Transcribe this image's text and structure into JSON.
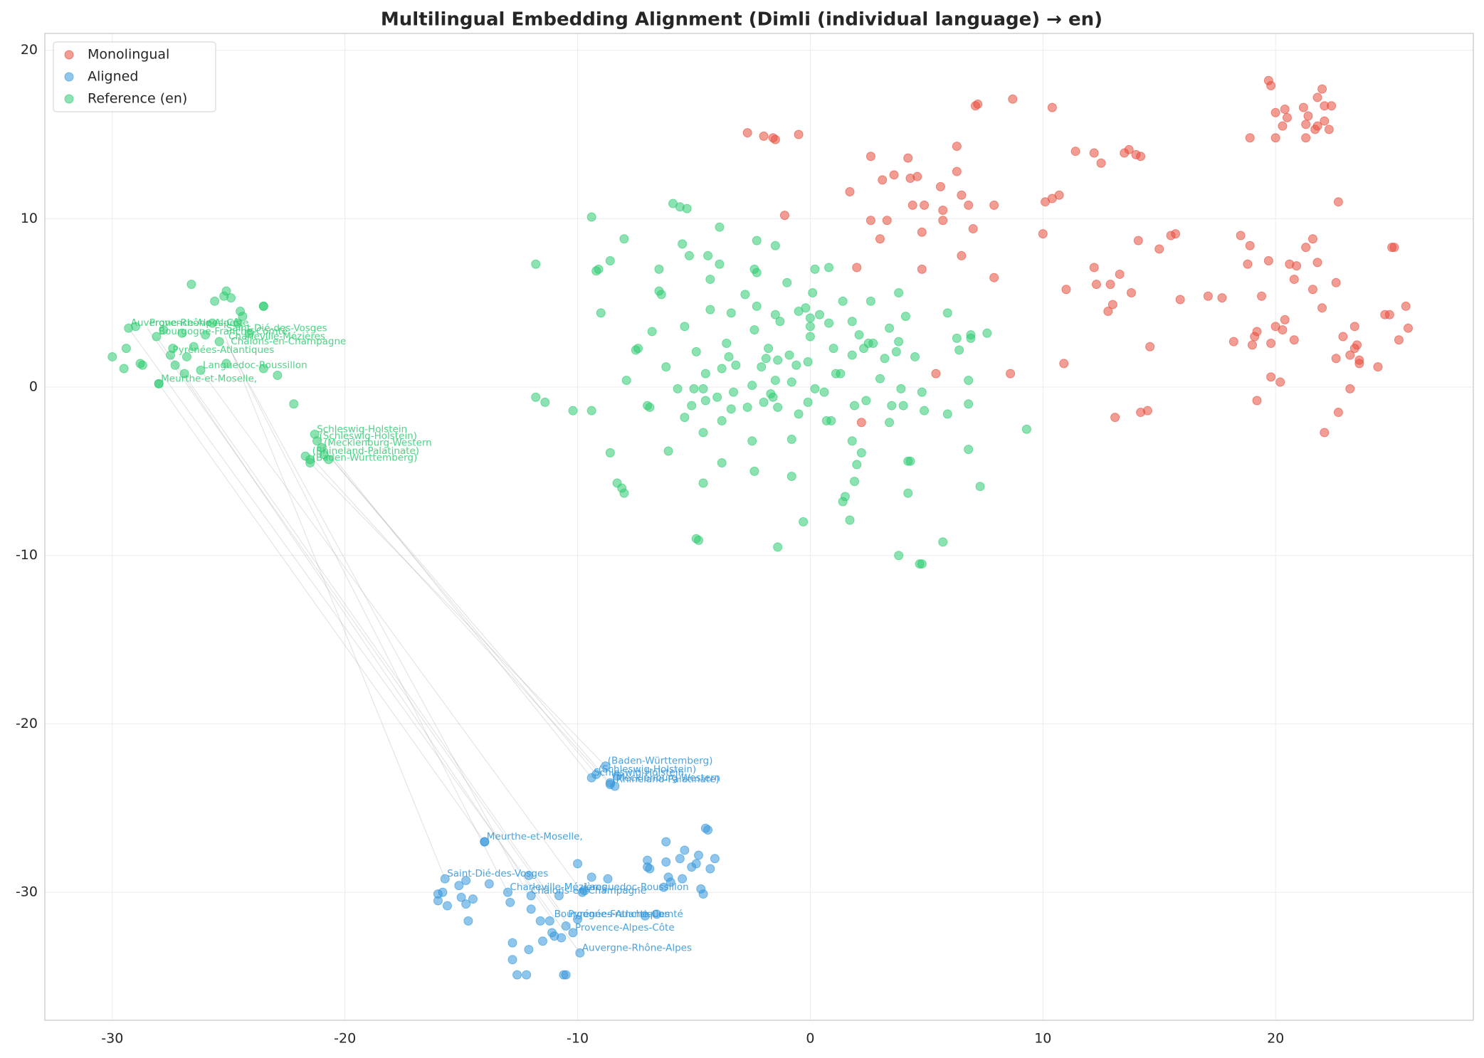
{
  "chart_data": {
    "type": "scatter",
    "title": "Multilingual Embedding Alignment (Dimli (individual language) → en)",
    "xlim": [
      -32.9,
      28.5
    ],
    "ylim": [
      -37.6,
      21.0
    ],
    "xticks": [
      -30,
      -20,
      -10,
      0,
      10,
      20
    ],
    "yticks": [
      -30,
      -20,
      -10,
      0,
      10,
      20
    ],
    "grid": true,
    "legend": "upper left",
    "series": [
      {
        "name": "Monolingual",
        "color": "#e74c3c",
        "x": [
          -2.7,
          -2.0,
          -1.6,
          -1.5,
          -0.5,
          -1.1,
          1.7,
          2.0,
          2.6,
          2.6,
          3.0,
          3.1,
          3.3,
          3.6,
          4.2,
          4.3,
          4.4,
          4.6,
          4.8,
          4.8,
          4.9,
          5.6,
          5.7,
          5.7,
          6.3,
          6.3,
          6.5,
          6.5,
          6.8,
          7.0,
          7.1,
          7.2,
          7.9,
          7.9,
          8.7,
          8.6,
          10.0,
          10.1,
          10.4,
          10.4,
          10.7,
          10.9,
          11.0,
          11.4,
          12.2,
          12.2,
          12.3,
          12.5,
          12.8,
          12.9,
          13.0,
          13.1,
          13.3,
          13.5,
          13.7,
          13.8,
          14.0,
          14.1,
          14.2,
          14.2,
          14.5,
          14.6,
          15.0,
          15.5,
          15.7,
          15.9,
          17.1,
          17.7,
          18.2,
          18.5,
          18.8,
          18.9,
          18.9,
          19.0,
          19.1,
          19.2,
          19.2,
          19.4,
          19.7,
          19.7,
          19.8,
          19.8,
          19.8,
          20.0,
          20.0,
          20.0,
          20.2,
          20.3,
          20.3,
          20.4,
          20.4,
          20.5,
          20.6,
          20.8,
          20.8,
          20.9,
          21.2,
          21.3,
          21.3,
          21.3,
          21.4,
          21.6,
          21.6,
          21.7,
          21.8,
          21.8,
          21.8,
          22.0,
          22.0,
          22.1,
          22.1,
          22.1,
          22.3,
          22.4,
          22.6,
          22.6,
          22.7,
          22.7,
          22.9,
          23.2,
          23.2,
          23.4,
          23.4,
          23.5,
          23.6,
          23.6,
          24.4,
          24.7,
          24.9,
          25.0,
          25.1,
          25.3,
          25.6,
          25.7,
          2.2,
          5.4
        ],
        "values": [
          15.1,
          14.9,
          14.8,
          14.7,
          15.0,
          10.2,
          11.6,
          7.1,
          13.7,
          9.9,
          8.8,
          12.3,
          9.9,
          12.6,
          13.6,
          12.4,
          10.8,
          12.5,
          7.0,
          9.2,
          10.8,
          11.9,
          10.5,
          9.9,
          14.3,
          12.8,
          11.4,
          7.8,
          10.8,
          9.4,
          16.7,
          16.8,
          10.8,
          6.5,
          17.1,
          0.8,
          9.1,
          11.0,
          16.6,
          11.2,
          11.4,
          1.4,
          5.8,
          14.0,
          13.9,
          7.1,
          6.1,
          13.3,
          4.5,
          6.1,
          4.9,
          -1.8,
          6.7,
          13.9,
          14.1,
          5.6,
          13.8,
          8.7,
          13.7,
          -1.5,
          -1.4,
          2.4,
          8.2,
          9.0,
          9.1,
          5.2,
          5.4,
          5.3,
          2.7,
          9.0,
          7.3,
          8.4,
          14.8,
          2.5,
          3.0,
          -0.8,
          3.3,
          5.4,
          18.2,
          7.5,
          2.6,
          0.6,
          17.9,
          3.6,
          14.8,
          16.3,
          0.3,
          3.4,
          15.5,
          4.0,
          16.5,
          16.0,
          7.3,
          6.4,
          2.8,
          7.2,
          16.6,
          8.3,
          15.6,
          14.8,
          16.1,
          5.8,
          8.8,
          15.3,
          17.2,
          7.4,
          15.5,
          4.7,
          17.7,
          15.8,
          -2.7,
          16.7,
          15.3,
          16.7,
          6.2,
          1.7,
          11.0,
          -1.5,
          3.0,
          -0.1,
          1.9,
          2.3,
          3.6,
          2.5,
          1.4,
          1.6,
          1.2,
          4.3,
          4.3,
          8.3,
          8.3,
          2.8,
          4.8,
          3.5,
          -2.1,
          0.8
        ]
      },
      {
        "name": "Aligned",
        "color": "#3498db",
        "x": [
          -16.0,
          -16.0,
          -15.8,
          -15.7,
          -15.6,
          -15.1,
          -15.0,
          -14.8,
          -14.8,
          -14.7,
          -14.5,
          -14.0,
          -14.0,
          -13.8,
          -13.0,
          -12.9,
          -12.8,
          -12.8,
          -12.6,
          -12.2,
          -12.1,
          -12.1,
          -12.0,
          -12.0,
          -11.6,
          -11.5,
          -11.2,
          -11.1,
          -11.0,
          -10.8,
          -10.7,
          -10.6,
          -10.5,
          -10.5,
          -10.2,
          -10.0,
          -10.0,
          -9.9,
          -9.8,
          -9.7,
          -9.4,
          -9.4,
          -9.2,
          -8.8,
          -8.7,
          -8.6,
          -8.6,
          -8.4,
          -8.3,
          -7.1,
          -7.0,
          -7.0,
          -6.9,
          -6.6,
          -6.3,
          -6.2,
          -6.2,
          -6.1,
          -6.0,
          -5.6,
          -5.5,
          -5.4,
          -5.1,
          -4.9,
          -4.8,
          -4.7,
          -4.6,
          -4.5,
          -4.4,
          -4.3,
          -4.1
        ],
        "values": [
          -30.1,
          -30.5,
          -30.0,
          -29.2,
          -30.8,
          -29.6,
          -30.3,
          -29.3,
          -30.7,
          -31.7,
          -30.4,
          -27.0,
          -27.0,
          -29.5,
          -30.0,
          -30.6,
          -34.0,
          -33.0,
          -34.9,
          -34.9,
          -29.0,
          -33.4,
          -31.0,
          -30.2,
          -31.7,
          -32.9,
          -31.7,
          -32.4,
          -32.6,
          -30.2,
          -32.7,
          -34.9,
          -34.9,
          -32.0,
          -32.4,
          -28.3,
          -31.6,
          -33.6,
          -30.0,
          -29.9,
          -29.1,
          -23.2,
          -23.0,
          -22.5,
          -29.2,
          -23.6,
          -23.5,
          -23.7,
          -23.1,
          -31.4,
          -28.1,
          -28.5,
          -28.6,
          -31.3,
          -29.7,
          -27.0,
          -28.2,
          -29.1,
          -29.4,
          -28.0,
          -29.2,
          -27.5,
          -28.5,
          -28.3,
          -27.8,
          -29.8,
          -30.1,
          -26.2,
          -26.3,
          -28.6,
          -28.0
        ]
      },
      {
        "name": "Reference (en)",
        "color": "#2ecc71",
        "x": [
          -30.0,
          -29.5,
          -29.4,
          -29.3,
          -29.0,
          -28.8,
          -28.7,
          -28.1,
          -28.0,
          -28.0,
          -27.8,
          -27.5,
          -27.4,
          -27.3,
          -27.0,
          -26.9,
          -26.8,
          -26.6,
          -26.5,
          -26.2,
          -26.0,
          -25.7,
          -25.6,
          -25.4,
          -25.2,
          -25.1,
          -25.1,
          -24.9,
          -24.6,
          -24.5,
          -24.4,
          -24.1,
          -23.5,
          -23.5,
          -23.5,
          -22.9,
          -22.2,
          -21.7,
          -21.5,
          -21.5,
          -21.3,
          -21.2,
          -21.0,
          -20.9,
          -20.7,
          -11.8,
          -11.8,
          -11.4,
          -10.2,
          -9.4,
          -9.4,
          -9.2,
          -9.1,
          -9.0,
          -8.6,
          -8.6,
          -8.3,
          -8.1,
          -8.0,
          -8.0,
          -7.9,
          -7.5,
          -7.4,
          -7.0,
          -6.9,
          -6.8,
          -6.5,
          -6.5,
          -6.4,
          -6.2,
          -6.1,
          -5.9,
          -5.7,
          -5.6,
          -5.5,
          -5.4,
          -5.4,
          -5.3,
          -5.2,
          -5.1,
          -5.0,
          -4.9,
          -4.9,
          -4.8,
          -4.6,
          -4.6,
          -4.6,
          -4.5,
          -4.5,
          -4.4,
          -4.3,
          -4.3,
          -4.0,
          -3.9,
          -3.9,
          -3.8,
          -3.8,
          -3.8,
          -3.6,
          -3.5,
          -3.4,
          -3.4,
          -3.3,
          -3.2,
          -2.8,
          -2.7,
          -2.5,
          -2.5,
          -2.4,
          -2.4,
          -2.4,
          -2.3,
          -2.3,
          -2.3,
          -2.1,
          -2.0,
          -1.9,
          -1.8,
          -1.7,
          -1.6,
          -1.5,
          -1.5,
          -1.5,
          -1.4,
          -1.4,
          -1.4,
          -1.3,
          -1.0,
          -0.9,
          -0.8,
          -0.8,
          -0.8,
          -0.6,
          -0.5,
          -0.5,
          -0.3,
          -0.2,
          -0.1,
          -0.1,
          0.0,
          0.0,
          0.0,
          0.1,
          0.2,
          0.2,
          0.4,
          0.6,
          0.7,
          0.8,
          0.8,
          0.9,
          1.0,
          1.1,
          1.3,
          1.4,
          1.4,
          1.5,
          1.7,
          1.8,
          1.8,
          1.8,
          1.9,
          1.9,
          2.0,
          2.1,
          2.2,
          2.3,
          2.4,
          2.5,
          2.6,
          2.7,
          3.0,
          3.2,
          3.4,
          3.4,
          3.5,
          3.7,
          3.8,
          3.8,
          3.8,
          3.9,
          4.0,
          4.1,
          4.2,
          4.2,
          4.3,
          4.5,
          4.7,
          4.8,
          4.8,
          4.9,
          5.7,
          5.9,
          5.9,
          6.3,
          6.4,
          6.8,
          6.8,
          6.8,
          6.9,
          6.9,
          7.3,
          7.6,
          9.3
        ],
        "values": [
          1.8,
          1.1,
          2.3,
          3.5,
          3.6,
          1.4,
          1.3,
          3.0,
          0.2,
          0.2,
          3.4,
          1.9,
          2.3,
          1.3,
          3.2,
          0.8,
          1.8,
          6.1,
          2.4,
          1.0,
          3.1,
          3.8,
          5.1,
          2.7,
          5.4,
          5.7,
          1.4,
          5.3,
          3.8,
          4.5,
          4.2,
          3.2,
          4.8,
          4.8,
          1.1,
          0.7,
          -1.0,
          -4.1,
          -4.5,
          -4.3,
          -2.8,
          -3.2,
          -3.6,
          -4.0,
          -4.3,
          7.3,
          -0.6,
          -0.9,
          -1.4,
          10.1,
          -1.4,
          6.9,
          7.0,
          4.4,
          7.5,
          -3.9,
          -5.7,
          -6.0,
          -6.3,
          8.8,
          0.4,
          2.2,
          2.3,
          -1.1,
          -1.2,
          3.3,
          7.0,
          5.7,
          5.5,
          1.2,
          -3.8,
          10.9,
          -0.1,
          10.7,
          8.5,
          3.6,
          -1.8,
          10.6,
          7.8,
          -1.1,
          -0.1,
          2.1,
          -9.0,
          -9.1,
          -2.7,
          -5.7,
          -0.1,
          0.8,
          -0.8,
          7.8,
          6.4,
          4.6,
          -0.6,
          9.5,
          7.3,
          1.1,
          -2.0,
          -4.5,
          2.6,
          1.8,
          -1.3,
          4.4,
          -0.3,
          1.3,
          5.5,
          -1.2,
          -3.2,
          0.1,
          3.4,
          -5.0,
          7.0,
          6.8,
          8.7,
          4.8,
          1.2,
          -0.9,
          1.7,
          2.3,
          -0.4,
          -0.6,
          4.3,
          8.4,
          0.4,
          1.6,
          -9.5,
          -1.2,
          3.9,
          6.2,
          1.9,
          -3.1,
          -5.3,
          0.3,
          1.3,
          4.5,
          -1.6,
          -8.0,
          4.7,
          -0.9,
          1.5,
          3.0,
          4.1,
          3.6,
          5.6,
          -0.1,
          7.0,
          4.3,
          -0.3,
          -2.0,
          3.8,
          7.1,
          -2.0,
          2.3,
          0.8,
          0.8,
          5.1,
          -6.8,
          -6.5,
          -7.9,
          3.9,
          1.9,
          -3.2,
          -1.1,
          -5.6,
          -4.6,
          3.1,
          -3.9,
          2.3,
          -0.8,
          2.6,
          5.1,
          2.6,
          0.5,
          1.7,
          -2.1,
          3.5,
          -1.1,
          2.1,
          5.6,
          2.7,
          -10.0,
          -0.1,
          -1.1,
          4.2,
          -6.3,
          -4.4,
          -4.4,
          1.8,
          -10.5,
          -10.5,
          -0.3,
          -1.4,
          -9.2,
          -1.6,
          4.4,
          2.9,
          2.2,
          -3.7,
          -1.0,
          0.4,
          3.1,
          2.9,
          -5.9,
          3.2,
          -2.5
        ]
      }
    ],
    "annotations": [
      {
        "text": "Provence-Alpes-Côte",
        "ref_x": -28.5,
        "ref_y": 3.5,
        "aligned_x": -10.2,
        "aligned_y": -32.4
      },
      {
        "text": "Auvergne-Rhône-Alpes",
        "ref_x": -29.3,
        "ref_y": 3.5,
        "aligned_x": -9.9,
        "aligned_y": -33.6
      },
      {
        "text": "Saint-Dié-des-Vosges",
        "ref_x": -25.2,
        "ref_y": 3.2,
        "aligned_x": -15.7,
        "aligned_y": -29.2
      },
      {
        "text": "Bourgogne-Franche-Comté",
        "ref_x": -28.1,
        "ref_y": 3.0,
        "aligned_x": -11.1,
        "aligned_y": -31.6
      },
      {
        "text": "Charleville-Mézières",
        "ref_x": -25.1,
        "ref_y": 2.7,
        "aligned_x": -13.0,
        "aligned_y": -30.0
      },
      {
        "text": "Châlons-en-Champagne",
        "ref_x": -25.0,
        "ref_y": 2.4,
        "aligned_x": -12.1,
        "aligned_y": -30.2
      },
      {
        "text": "Pyrénées-Atlantiques",
        "ref_x": -27.5,
        "ref_y": 1.9,
        "aligned_x": -10.5,
        "aligned_y": -31.6
      },
      {
        "text": "Languedoc-Roussillon",
        "ref_x": -26.2,
        "ref_y": 1.0,
        "aligned_x": -9.8,
        "aligned_y": -30.0
      },
      {
        "text": "Meurthe-et-Moselle,",
        "ref_x": -28.0,
        "ref_y": 0.2,
        "aligned_x": -14.0,
        "aligned_y": -27.0
      },
      {
        "text": "Schleswig-Holstein",
        "ref_x": -21.3,
        "ref_y": -2.8,
        "aligned_x": -9.4,
        "aligned_y": -23.2
      },
      {
        "text": "(Schleswig-Holstein)",
        "ref_x": -21.2,
        "ref_y": -3.2,
        "aligned_x": -9.2,
        "aligned_y": -23.0
      },
      {
        "text": "(Mecklenburg-Western",
        "ref_x": -21.0,
        "ref_y": -3.6,
        "aligned_x": -8.6,
        "aligned_y": -23.5
      },
      {
        "text": "(Rhineland-Palatinate)",
        "ref_x": -21.5,
        "ref_y": -4.1,
        "aligned_x": -8.6,
        "aligned_y": -23.6
      },
      {
        "text": "(Baden-Württemberg)",
        "ref_x": -21.5,
        "ref_y": -4.5,
        "aligned_x": -8.8,
        "aligned_y": -22.5
      }
    ]
  }
}
